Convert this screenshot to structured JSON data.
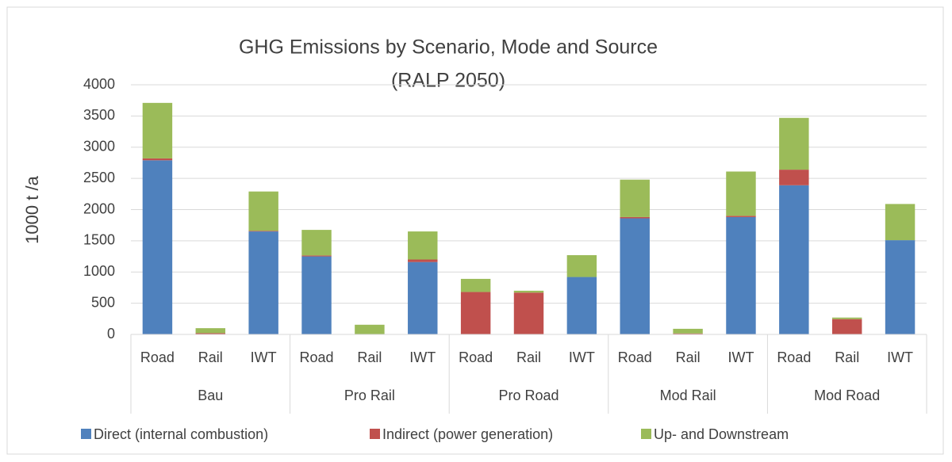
{
  "chart_data": {
    "type": "stacked_bar",
    "title": [
      "GHG Emissions by Scenario, Mode and Source",
      "(RALP 2050)"
    ],
    "y_label": "1000 t /a",
    "categories": [
      "Road",
      "Rail",
      "IWT",
      "Road",
      "Rail",
      "IWT",
      "Road",
      "Rail",
      "IWT",
      "Road",
      "Rail",
      "IWT",
      "Road",
      "Rail",
      "IWT"
    ],
    "groups": [
      "Bau",
      "Pro Rail",
      "Pro Road",
      "Mod Rail",
      "Mod Road"
    ],
    "series": [
      {
        "name": "Direct (internal combustion)",
        "color": "#4f81bd",
        "values": [
          2790,
          0,
          1650,
          1250,
          0,
          1160,
          0,
          0,
          920,
          1860,
          0,
          1880,
          2390,
          0,
          1510
        ]
      },
      {
        "name": "Indirect (power generation)",
        "color": "#c0504d",
        "values": [
          30,
          20,
          10,
          15,
          5,
          40,
          680,
          670,
          0,
          20,
          15,
          20,
          250,
          245,
          0
        ]
      },
      {
        "name": "Up- and Downstream",
        "color": "#9bbb59",
        "values": [
          890,
          80,
          630,
          410,
          150,
          450,
          210,
          30,
          350,
          600,
          75,
          710,
          830,
          25,
          580
        ]
      }
    ],
    "ylim": [
      0,
      4000
    ],
    "yticks": [
      0,
      500,
      1000,
      1500,
      2000,
      2500,
      3000,
      3500,
      4000
    ],
    "grid": true,
    "legend": "bottom"
  }
}
